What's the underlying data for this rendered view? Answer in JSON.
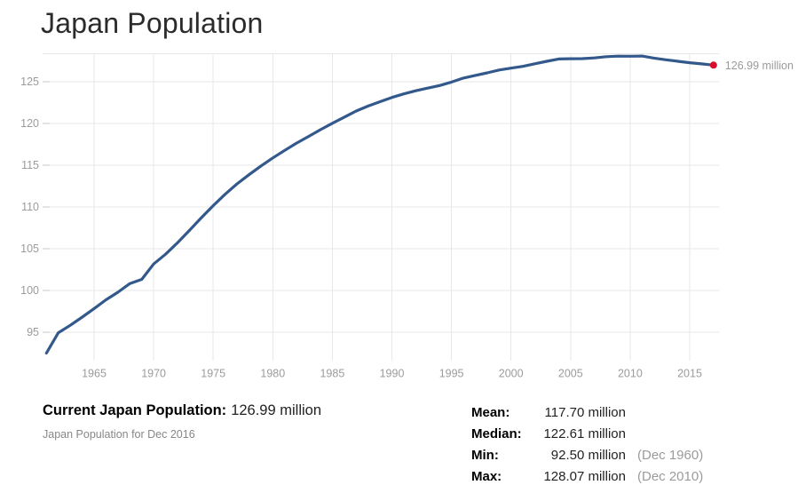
{
  "page_title": "Japan Population",
  "chart_data": {
    "type": "line",
    "title": "Japan Population",
    "x": [
      1960,
      1961,
      1962,
      1963,
      1964,
      1965,
      1966,
      1967,
      1968,
      1969,
      1970,
      1971,
      1972,
      1973,
      1974,
      1975,
      1976,
      1977,
      1978,
      1979,
      1980,
      1981,
      1982,
      1983,
      1984,
      1985,
      1986,
      1987,
      1988,
      1989,
      1990,
      1991,
      1992,
      1993,
      1994,
      1995,
      1996,
      1997,
      1998,
      1999,
      2000,
      2001,
      2002,
      2003,
      2004,
      2005,
      2006,
      2007,
      2008,
      2009,
      2010,
      2011,
      2012,
      2013,
      2014,
      2015,
      2016
    ],
    "values": [
      92.5,
      94.94,
      95.83,
      96.81,
      97.83,
      98.88,
      99.79,
      100.83,
      101.33,
      103.17,
      104.34,
      105.7,
      107.19,
      108.71,
      110.16,
      111.52,
      112.77,
      113.86,
      114.9,
      115.87,
      116.78,
      117.65,
      118.45,
      119.26,
      120.02,
      120.75,
      121.49,
      122.09,
      122.61,
      123.12,
      123.54,
      123.92,
      124.23,
      124.54,
      124.96,
      125.44,
      125.76,
      126.06,
      126.4,
      126.63,
      126.84,
      127.15,
      127.45,
      127.72,
      127.76,
      127.77,
      127.85,
      128.0,
      128.06,
      128.05,
      128.07,
      127.83,
      127.63,
      127.45,
      127.28,
      127.14,
      126.99
    ],
    "value_unit": "million",
    "xlabel": "",
    "ylabel": "",
    "x_ticks": [
      1965,
      1970,
      1975,
      1980,
      1985,
      1990,
      1995,
      2000,
      2005,
      2010,
      2015
    ],
    "y_ticks": [
      95,
      100,
      105,
      110,
      115,
      120,
      125
    ],
    "ylim": [
      90,
      128.5
    ],
    "xlim": [
      1960,
      2017
    ],
    "grid": true,
    "legend": "none",
    "end_point": {
      "month": "Dec",
      "year": 2016,
      "value": 126.99,
      "label": "126.99 million"
    },
    "colors": {
      "line": "#33598c",
      "marker": "#d7112c",
      "grid": "#e7e7e7",
      "axis_tick": "#c9c9c9",
      "tick_label": "#9b9b9b",
      "end_label": "#9b9b9b"
    }
  },
  "footer": {
    "current_label": "Current Japan Population:",
    "current_value": "126.99 million",
    "subtitle": "Japan Population for Dec 2016"
  },
  "stats": {
    "rows": [
      {
        "label": "Mean:",
        "value": "117.70 million",
        "note": ""
      },
      {
        "label": "Median:",
        "value": "122.61 million",
        "note": ""
      },
      {
        "label": "Min:",
        "value": "92.50 million",
        "note": "(Dec 1960)"
      },
      {
        "label": "Max:",
        "value": "128.07 million",
        "note": "(Dec 2010)"
      }
    ]
  }
}
